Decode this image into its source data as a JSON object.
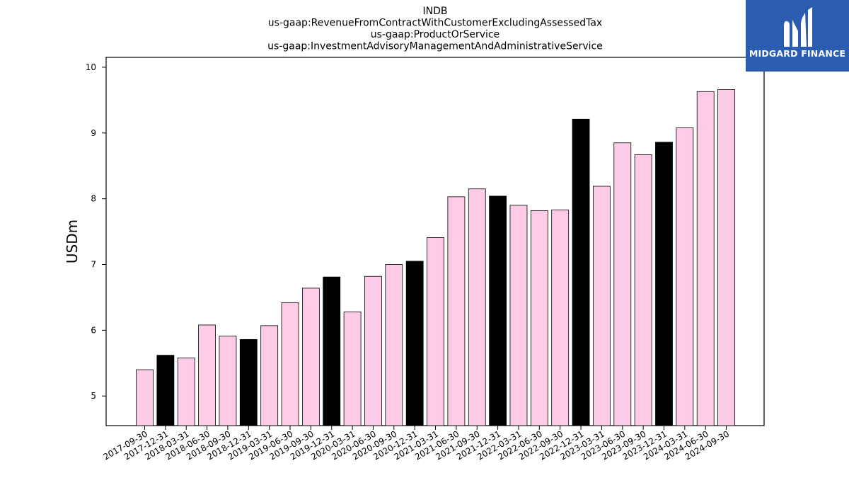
{
  "chart_data": {
    "type": "bar",
    "title_lines": [
      "INDB",
      "us-gaap:RevenueFromContractWithCustomerExcludingAssessedTax",
      "us-gaap:ProductOrService",
      "us-gaap:InvestmentAdvisoryManagementAndAdministrativeService"
    ],
    "xlabel": "",
    "ylabel": "USDm",
    "ylim": [
      4.55,
      10.15
    ],
    "yticks": [
      5,
      6,
      7,
      8,
      9,
      10
    ],
    "categories": [
      "2017-09-30",
      "2017-12-31",
      "2018-03-31",
      "2018-06-30",
      "2018-09-30",
      "2018-12-31",
      "2019-03-31",
      "2019-06-30",
      "2019-09-30",
      "2019-12-31",
      "2020-03-31",
      "2020-06-30",
      "2020-09-30",
      "2020-12-31",
      "2021-03-31",
      "2021-06-30",
      "2021-09-30",
      "2021-12-31",
      "2022-03-31",
      "2022-06-30",
      "2022-09-30",
      "2022-12-31",
      "2023-03-31",
      "2023-06-30",
      "2023-09-30",
      "2023-12-31",
      "2024-03-31",
      "2024-06-30",
      "2024-09-30"
    ],
    "values": [
      5.4,
      5.62,
      5.58,
      6.08,
      5.91,
      5.86,
      6.07,
      6.42,
      6.64,
      6.81,
      6.28,
      6.82,
      7.0,
      7.05,
      7.41,
      8.03,
      8.15,
      8.04,
      7.9,
      7.82,
      7.83,
      9.21,
      8.19,
      8.85,
      8.67,
      8.86,
      9.08,
      9.63,
      9.66
    ],
    "highlight": [
      false,
      true,
      false,
      false,
      false,
      true,
      false,
      false,
      false,
      true,
      false,
      false,
      false,
      true,
      false,
      false,
      false,
      true,
      false,
      false,
      false,
      true,
      false,
      false,
      false,
      true,
      false,
      false,
      false
    ],
    "colors": {
      "normal": "#fccce6",
      "highlight": "#000000",
      "edge": "#000000"
    },
    "grid": false,
    "legend": "none"
  },
  "logo": {
    "text": "MIDGARD FINANCE",
    "background": "#2a5db0",
    "icon": "midgard-logo-icon"
  }
}
